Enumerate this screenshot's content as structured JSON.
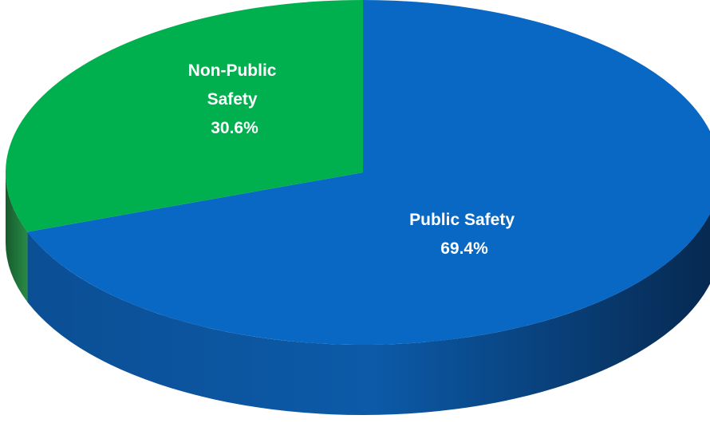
{
  "chart_data": {
    "type": "pie",
    "style": "3d",
    "slices": [
      {
        "name": "Public Safety",
        "value": 69.4,
        "label_lines": [
          "Public Safety",
          "69.4%"
        ],
        "color": "#0868c4",
        "side_color": "#063a73"
      },
      {
        "name": "Non-Public Safety",
        "value": 30.6,
        "label_lines": [
          "Non-Public",
          "Safety",
          "30.6%"
        ],
        "color": "#00b04e",
        "side_color": "#1f6e38"
      }
    ]
  }
}
